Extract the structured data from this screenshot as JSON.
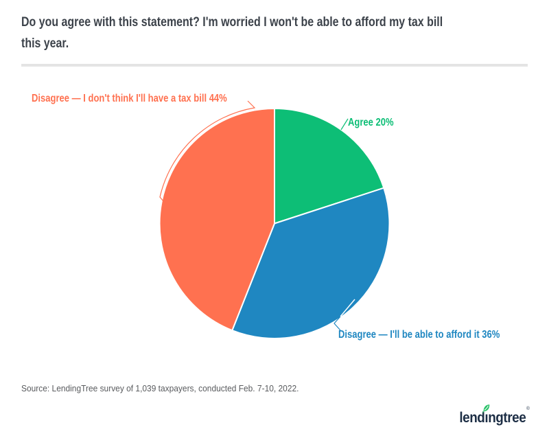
{
  "header": {
    "title_lines": [
      "Do you agree with this statement? I'm worried I won't be able to afford my tax bill",
      "this year."
    ]
  },
  "chart_data": {
    "type": "pie",
    "title": "Do you agree with this statement? I'm worried I won't be able to afford my tax bill this year.",
    "start_angle": "12-oclock",
    "direction": "clockwise",
    "legend_position": "outside-callout-labels",
    "slices": [
      {
        "key": "agree",
        "label": "Agree",
        "value": 20,
        "unit": "%",
        "color": "#0dbe76",
        "display_label": "Agree 20%"
      },
      {
        "key": "disagree-can-afford",
        "label": "Disagree — I'll be able to afford it",
        "value": 36,
        "unit": "%",
        "color": "#1f87c1",
        "display_label": "Disagree — I'll be able to afford it 36%"
      },
      {
        "key": "disagree-no-tax-bill",
        "label": "Disagree — I don't think I'll have a tax bill",
        "value": 44,
        "unit": "%",
        "color": "#ff7150",
        "display_label": "Disagree — I don't think I'll have a tax bill 44%"
      }
    ]
  },
  "footer": {
    "source": "Source: LendingTree survey of 1,039 taxpayers, conducted Feb. 7-10, 2022.",
    "logo": {
      "name": "LendingTree",
      "prefix": "lend",
      "dotless_i": "ı",
      "suffix": "ngtree",
      "mark": "®",
      "wordmark_color": "#1d2e45",
      "leaf_color": "#2bc36a"
    }
  }
}
